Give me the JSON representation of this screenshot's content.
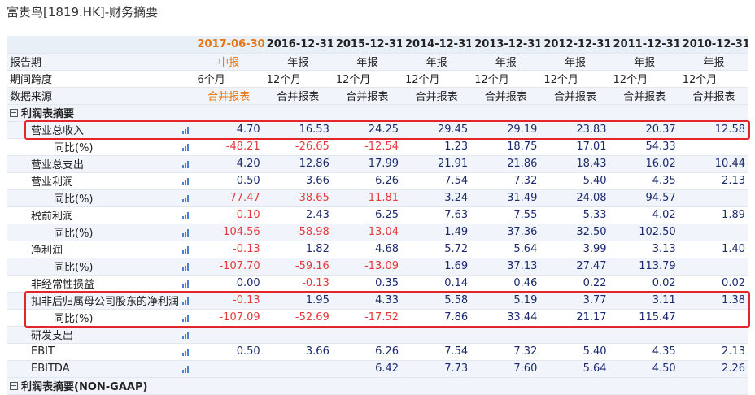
{
  "title": "富贵鸟[1819.HK]-财务摘要",
  "table": {
    "columns": [
      "2017-06-30",
      "2016-12-31",
      "2015-12-31",
      "2014-12-31",
      "2013-12-31",
      "2012-12-31",
      "2011-12-31",
      "2010-12-31"
    ],
    "meta_rows": [
      {
        "label": "报告期",
        "cells": [
          "中报",
          "年报",
          "年报",
          "年报",
          "年报",
          "年报",
          "年报",
          "年报"
        ]
      },
      {
        "label": "期间跨度",
        "cells": [
          "6个月",
          "12个月",
          "12个月",
          "12个月",
          "12个月",
          "12个月",
          "12个月",
          "12个月"
        ]
      },
      {
        "label": "数据来源",
        "cells": [
          "合并报表",
          "合并报表",
          "合并报表",
          "合并报表",
          "合并报表",
          "合并报表",
          "合并报表",
          "合并报表"
        ]
      }
    ],
    "sections": [
      {
        "title": "利润表摘要",
        "rows": [
          {
            "label": "营业总收入",
            "cells": [
              "4.70",
              "16.53",
              "24.25",
              "29.45",
              "29.19",
              "23.83",
              "20.37",
              "12.58"
            ],
            "sub": {
              "label": "同比(%)",
              "cells": [
                "-48.21",
                "-26.65",
                "-12.54",
                "1.23",
                "18.75",
                "17.01",
                "54.33",
                null
              ]
            }
          },
          {
            "label": "营业总支出",
            "cells": [
              "4.20",
              "12.86",
              "17.99",
              "21.91",
              "21.86",
              "18.43",
              "16.02",
              "10.44"
            ]
          },
          {
            "label": "营业利润",
            "cells": [
              "0.50",
              "3.66",
              "6.26",
              "7.54",
              "7.32",
              "5.40",
              "4.35",
              "2.13"
            ],
            "sub": {
              "label": "同比(%)",
              "cells": [
                "-77.47",
                "-38.65",
                "-11.81",
                "3.24",
                "31.49",
                "24.08",
                "94.57",
                null
              ]
            }
          },
          {
            "label": "税前利润",
            "cells": [
              "-0.10",
              "2.43",
              "6.25",
              "7.63",
              "7.55",
              "5.33",
              "4.02",
              "1.89"
            ],
            "sub": {
              "label": "同比(%)",
              "cells": [
                "-104.56",
                "-58.98",
                "-13.04",
                "1.49",
                "37.36",
                "32.50",
                "102.50",
                null
              ]
            }
          },
          {
            "label": "净利润",
            "cells": [
              "-0.13",
              "1.82",
              "4.68",
              "5.72",
              "5.64",
              "3.99",
              "3.13",
              "1.40"
            ],
            "sub": {
              "label": "同比(%)",
              "cells": [
                "-107.70",
                "-59.16",
                "-13.09",
                "1.69",
                "37.13",
                "27.47",
                "113.79",
                null
              ]
            }
          },
          {
            "label": "非经常性损益",
            "cells": [
              "0.00",
              "-0.13",
              "0.35",
              "0.14",
              "0.46",
              "0.22",
              "0.02",
              "0.02"
            ]
          },
          {
            "label": "扣非后归属母公司股东的净利润",
            "cells": [
              "-0.13",
              "1.95",
              "4.33",
              "5.58",
              "5.19",
              "3.77",
              "3.11",
              "1.38"
            ],
            "sub": {
              "label": "同比(%)",
              "cells": [
                "-107.09",
                "-52.69",
                "-17.52",
                "7.86",
                "33.44",
                "21.17",
                "115.47",
                null
              ]
            }
          },
          {
            "label": "研发支出",
            "cells": [
              null,
              null,
              null,
              null,
              null,
              null,
              null,
              null
            ]
          },
          {
            "label": "EBIT",
            "cells": [
              "0.50",
              "3.66",
              "6.26",
              "7.54",
              "7.32",
              "5.40",
              "4.35",
              "2.13"
            ]
          },
          {
            "label": "EBITDA",
            "cells": [
              null,
              null,
              "6.42",
              "7.73",
              "7.60",
              "5.64",
              "4.50",
              "2.26"
            ]
          }
        ]
      },
      {
        "title": "利润表摘要(NON-GAAP)",
        "rows": []
      }
    ]
  }
}
